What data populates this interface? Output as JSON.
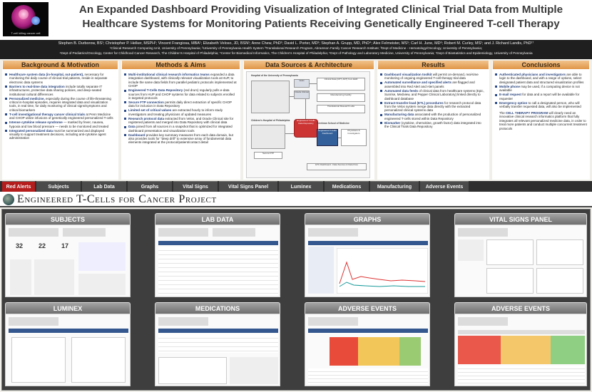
{
  "poster": {
    "logo_text": "T-cell killing cancer cell",
    "title_line1": "An Expanded Dashboard Providing Visualization of Integrated Clinical Trial Data from Multiple",
    "title_line2": "Healthcare Systems for Monitoring Patients Receiving Genetically Engineered T-cell Therapy",
    "authors": "Stephen B. Durborow, BS¹; Christopher P. Helker, MSPH¹; Vincent Frangiosa, MBA¹; Elizabeth Veloso, JD, BSN¹; Anne Chew, PhD²; David L. Porter, MD³; Stephan A. Grupp, MD, PhD⁴; Alex Felmeister, MS⁵; Carl H. June, MD⁶; Robert M. Curley, MS¹; and J. Richard Landis, PhD¹⁷",
    "affil1": "¹Clinical Research Computing Unit, University of Pennsylvania; ²University of Pennsylvania Health System ³Translational Research Program, Abramson Family Cancer Research Institute; ³Dept of Medicine - Hematology/Oncology, University of Pennsylvania;",
    "affil2": "⁴Dept of Pediatrics/Oncology, Center for Childhood Cancer Research, The Children's Hospital of Philadelphia; ⁵Center for Biomedical Informatics, The Children's Hospital of Philadelphia; ⁶Dept of Pathology and Laboratory Medicine, University of Pennsylvania; ⁷Dept of Biostatistics and Epidemiology, University of Pennsylvania"
  },
  "sections": {
    "background": {
      "title": "Background & Motivation",
      "items": [
        {
          "b": "Healthcare system data (in-hospital, out-patient),",
          "t": " necessary for monitoring the daily course of clinical trial patients, reside in separate electronic data systems"
        },
        {
          "b": "Barriers to real-time data integration",
          "t": " include totally separate IT infrastructures, protective data sharing policies, and deep-seated institutional cultural differences"
        },
        {
          "b": "Personalized medicine,",
          "t": " especially during the course of life-threatening critical in-hospital episodes, requires integrated data and visualization tools, in real time, for daily monitoring of clinical signs/symptoms and critical biomarkers"
        },
        {
          "b": "T-cell investigational therapy cancer clinical trials",
          "t": " at Penn Medicine and CHOP utilize infusions of genetically engineered personalized T-cells"
        },
        {
          "b": "Intense cytokine release syndrome",
          "t": " — marked by fever, nausea, hypoxia and low blood pressure — needs to be monitored and treated"
        },
        {
          "b": "Integrated personalized data",
          "t": " must be summarized and displayed visually to support treatment decisions, including anti-cytokine agent administration"
        }
      ]
    },
    "methods": {
      "title": "Methods & Aims",
      "items": [
        {
          "b": "Multi-institutional clinical research informatics teams",
          "t": " expanded a data integration dashboard, with clinically relevant visualization tools at HUP, to include the same data fields from parallel pediatric protocols implemented at CHOP"
        },
        {
          "b": "Engineered T-Cells Data Repository",
          "t": " (red drum) regularly polls e-data sources from HUP and CHOP systems for data related to subjects enrolled in targeted protocols"
        },
        {
          "b": "Secure FTP connection",
          "t": " permits daily direct extraction of specific CHOP data for inclusion in Data Repository"
        },
        {
          "b": "Limited set of critical values",
          "t": " are extracted hourly to inform study investigators and treating physicians of updated measures"
        },
        {
          "b": "Research protocol data",
          "t": " extracted from Velos, and Oracle Clinical site for registered patients and merged into Data Repository with clinical data"
        },
        {
          "b": "Data",
          "t": " joined from all sources in a snapshot that is optimized for integrated dashboard presentation and visualization tools"
        },
        {
          "b": "Dashboard",
          "t": " provides key summary measures from each data domain, but also provides tools for \"deep drill\" to extensive array of fundamental data elements integrated at the protocol/patient/contact detail"
        }
      ]
    },
    "datasources": {
      "title": "Data Sources & Architecture",
      "boxes": {
        "hup": "Hospital of the University of Pennsylvania",
        "clinical": "Clinical Data (CPT, ADT) from EHR",
        "velos": "Velos",
        "oracle": "Oracle Clinical",
        "repo": "Engineered T-Cells Data Repository",
        "chop": "Children's Hospital of Philadelphia",
        "sftp": "Secure FTP",
        "perelman": "Perelman School of Medicine",
        "dash": "Engineered T-Cells Dashboard",
        "users": "Physicians & Investigators",
        "manuf": "Manufacturing Facility",
        "labs": "Translational Research Labs",
        "legend": "ETC Dashboard - Data Sources & Data Flow"
      }
    },
    "results": {
      "title": "Results",
      "items": [
        {
          "b": "Dashboard visualization toolkit",
          "t": " will permit on-demand, real-time monitoring of ongoing engineered T-cell therapy trial data"
        },
        {
          "b": "Automated surveillance and specified alerts",
          "t": " are flagged and assembled into Red Alert and Alert panels"
        },
        {
          "b": "Automated data feeds",
          "t": " of clinical data from healthcare systems (Epic, Sunrise, Medview, and Pepper Clinical Laboratory) linked directly to dashboard database"
        },
        {
          "b": "Extract-transfer-load (ETL) procedures",
          "t": " for research protocol data from the Velos system merge data directly with the extracted personalized clinical systems data"
        },
        {
          "b": "Manufacturing data",
          "t": " associated with the production of personalized engineered T-cells stored within Data Repository"
        },
        {
          "b": "Biomarker",
          "t": " (cytokine, chemokine, growth factor) data integrated into the Clinical Trials Data Repository"
        }
      ]
    },
    "conclusions": {
      "title": "Conclusions",
      "items": [
        {
          "b": "Authenticated physicians and investigators",
          "t": " are able to login to the dashboard, and with a range of options, select designated patient data and structured visualization profiles"
        },
        {
          "b": "Mobile phone",
          "t": " may be used, if a computing device is not available"
        },
        {
          "b": "E-mail request",
          "t": " for data and a report will be available for requester"
        },
        {
          "b": "Emergency option",
          "t": " to call a designated person, who will verbally transfer requested data, will also be implemented"
        }
      ],
      "closing_b": "CELL THERAPY PROGRAM",
      "closing_pre": "The ",
      "closing_t": " will clearly need an innovative clinical research informatics platform that fully integrates all relevant personalized medicine data, in order to treat more patients and conduct multiple concurrent treatment protocols"
    }
  },
  "tabs": [
    "Red Alerts",
    "Subjects",
    "Lab Data",
    "Graphs",
    "Vital Signs",
    "Vital Signs Panel",
    "Luminex",
    "Medications",
    "Manufacturing",
    "Adverse Events"
  ],
  "banner": "Engineered T-Cells for Cancer Project",
  "screens": {
    "subjects": "SUBJECTS",
    "lab": "LAB DATA",
    "graphs": "GRAPHS",
    "vsp": "VITAL SIGNS PANEL",
    "luminex": "LUMINEX",
    "meds": "MEDICATIONS",
    "ae1": "ADVERSE EVENTS",
    "ae2": "ADVERSE EVENTS",
    "subjects_counts": [
      "32",
      "22",
      "17"
    ]
  },
  "colors": {
    "accent_red": "#b51c1c",
    "section_orange": "#e09647",
    "text_blue": "#233f7a"
  }
}
